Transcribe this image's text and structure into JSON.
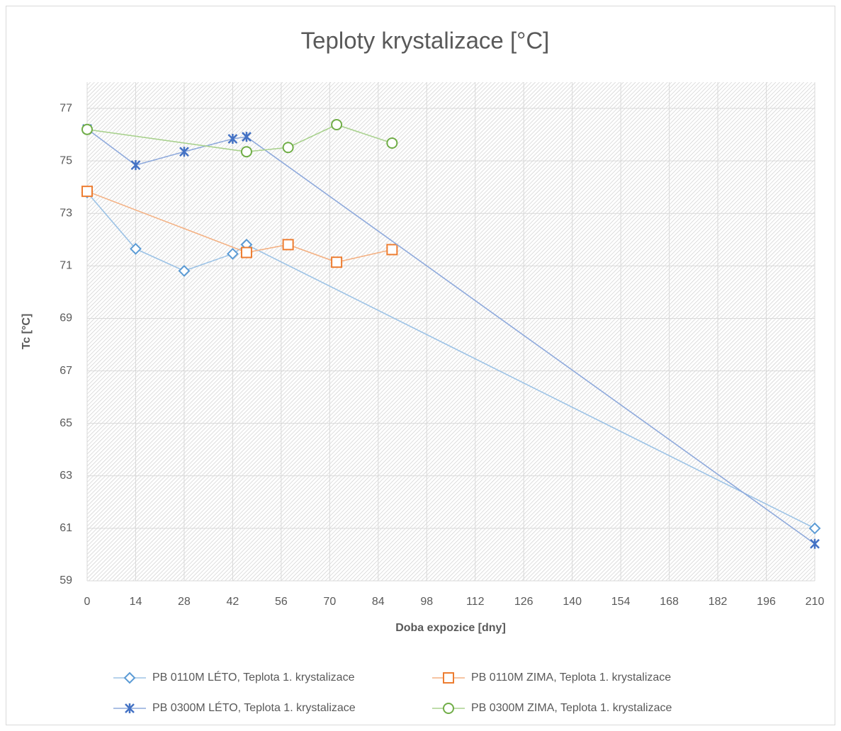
{
  "chart_data": {
    "type": "line",
    "title": "Teploty krystalizace [°C]",
    "x_label": "Doba expozice [dny]",
    "y_label": "Tc [°C]",
    "xlim": [
      0,
      210
    ],
    "xticks": [
      0,
      14,
      28,
      42,
      56,
      70,
      84,
      98,
      112,
      126,
      140,
      154,
      168,
      182,
      196,
      210
    ],
    "ylim": [
      59,
      78
    ],
    "yticks": [
      59,
      61,
      63,
      65,
      67,
      69,
      71,
      73,
      75,
      77
    ],
    "grid": true,
    "legend": "bottom",
    "series": [
      {
        "name": "PB 0110M LÉTO, Teplota 1. krystalizace",
        "color": "#5b9bd5",
        "line_color": "#9dc3e6",
        "marker": "diamond",
        "x": [
          0,
          14,
          28,
          42,
          46,
          210
        ],
        "values": [
          73.8,
          71.65,
          70.81,
          71.46,
          71.81,
          61.0
        ]
      },
      {
        "name": "PB 0110M ZIMA, Teplota 1. krystalizace",
        "color": "#ed7d31",
        "line_color": "#f4b183",
        "marker": "square",
        "x": [
          0,
          46,
          58,
          72,
          88
        ],
        "values": [
          73.84,
          71.51,
          71.81,
          71.14,
          71.62
        ]
      },
      {
        "name": "PB 0300M LÉTO, Teplota 1. krystalizace",
        "color": "#4472c4",
        "line_color": "#8faadc",
        "marker": "asterisk",
        "x": [
          0,
          14,
          28,
          42,
          46,
          210
        ],
        "values": [
          76.22,
          74.84,
          75.35,
          75.84,
          75.92,
          60.41
        ]
      },
      {
        "name": "PB 0300M ZIMA, Teplota 1. krystalizace",
        "color": "#70ad47",
        "line_color": "#a9d18e",
        "marker": "circle",
        "x": [
          0,
          46,
          58,
          72,
          88
        ],
        "values": [
          76.2,
          75.35,
          75.51,
          76.38,
          75.68
        ]
      }
    ]
  }
}
